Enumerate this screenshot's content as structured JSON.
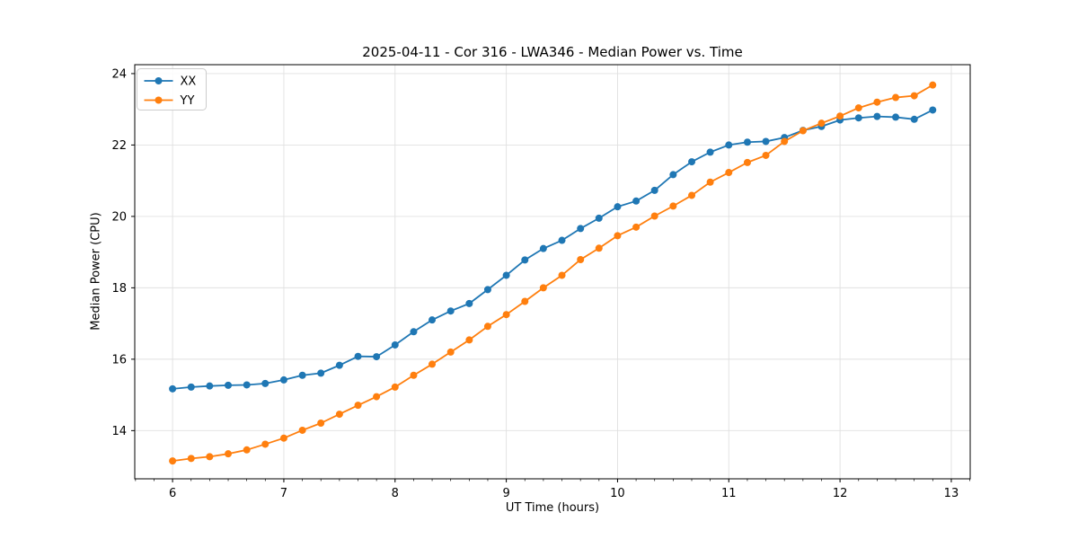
{
  "chart_data": {
    "type": "line",
    "title": "2025-04-11 - Cor 316 - LWA346 - Median Power vs. Time",
    "xlabel": "UT Time (hours)",
    "ylabel": "Median Power (CPU)",
    "xlim": [
      5.66,
      13.17
    ],
    "ylim": [
      12.65,
      24.25
    ],
    "xticks": [
      6,
      7,
      8,
      9,
      10,
      11,
      12,
      13
    ],
    "yticks": [
      14,
      16,
      18,
      20,
      22,
      24
    ],
    "x_minor_tick_interval": 0.166667,
    "grid": true,
    "legend_position": "upper left",
    "background_color": "#ffffff",
    "grid_color": "#e0e0e0",
    "x": [
      6.0,
      6.167,
      6.333,
      6.5,
      6.667,
      6.833,
      7.0,
      7.167,
      7.333,
      7.5,
      7.667,
      7.833,
      8.0,
      8.167,
      8.333,
      8.5,
      8.667,
      8.833,
      9.0,
      9.167,
      9.333,
      9.5,
      9.667,
      9.833,
      10.0,
      10.167,
      10.333,
      10.5,
      10.667,
      10.833,
      11.0,
      11.167,
      11.333,
      11.5,
      11.667,
      11.833,
      12.0,
      12.167,
      12.333,
      12.5,
      12.667,
      12.833
    ],
    "series": [
      {
        "name": "XX",
        "color": "#1f77b4",
        "values": [
          15.17,
          15.22,
          15.25,
          15.27,
          15.28,
          15.32,
          15.42,
          15.55,
          15.61,
          15.83,
          16.08,
          16.07,
          16.4,
          16.77,
          17.1,
          17.35,
          17.56,
          17.95,
          18.35,
          18.78,
          19.1,
          19.33,
          19.66,
          19.95,
          20.27,
          20.43,
          20.73,
          21.17,
          21.53,
          21.8,
          22.0,
          22.08,
          22.1,
          22.21,
          22.41,
          22.52,
          22.7,
          22.76,
          22.8,
          22.78,
          22.72,
          22.98
        ]
      },
      {
        "name": "YY",
        "color": "#ff7f0e",
        "values": [
          13.15,
          13.22,
          13.27,
          13.35,
          13.46,
          13.62,
          13.79,
          14.01,
          14.21,
          14.46,
          14.71,
          14.95,
          15.22,
          15.55,
          15.86,
          16.2,
          16.54,
          16.92,
          17.25,
          17.62,
          18.0,
          18.35,
          18.79,
          19.11,
          19.46,
          19.7,
          20.01,
          20.29,
          20.59,
          20.96,
          21.23,
          21.51,
          21.71,
          22.1,
          22.4,
          22.61,
          22.81,
          23.04,
          23.2,
          23.33,
          23.38,
          23.68
        ]
      }
    ]
  }
}
